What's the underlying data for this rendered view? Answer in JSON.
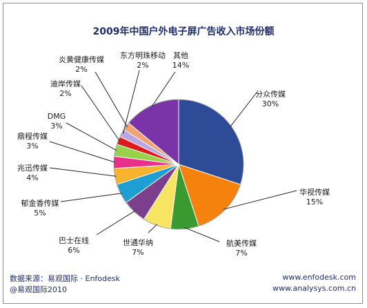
{
  "chart_data": {
    "type": "pie",
    "title": "2009年中国户外电子屏广告收入市场份额",
    "slices": [
      {
        "label": "分众传媒",
        "value": 30,
        "display": "30%",
        "color": "#2e4b97"
      },
      {
        "label": "华视传媒",
        "value": 15,
        "display": "15%",
        "color": "#f5820d"
      },
      {
        "label": "航美传媒",
        "value": 7,
        "display": "7%",
        "color": "#3a9a2f"
      },
      {
        "label": "世通华纳",
        "value": 7,
        "display": "7%",
        "color": "#f7e463"
      },
      {
        "label": "巴士在线",
        "value": 6,
        "display": "6%",
        "color": "#7b3f8e"
      },
      {
        "label": "郁金香传媒",
        "value": 5,
        "display": "5%",
        "color": "#1d9fd3"
      },
      {
        "label": "兆迅传媒",
        "value": 4,
        "display": "4%",
        "color": "#f7b22e"
      },
      {
        "label": "鼎程传媒",
        "value": 3,
        "display": "3%",
        "color": "#e8318a"
      },
      {
        "label": "DMG",
        "value": 3,
        "display": "3%",
        "color": "#9ad14a"
      },
      {
        "label": "迪岸传媒",
        "value": 2,
        "display": "2%",
        "color": "#e01818"
      },
      {
        "label": "东方明珠移动",
        "value": 2,
        "display": "2%",
        "color": "#b8a7e0"
      },
      {
        "label": "炎黄健康传媒",
        "value": 2,
        "display": "2%",
        "color": "#f7a072"
      },
      {
        "label": "其他",
        "value": 14,
        "display": "14%",
        "color": "#7b33a8"
      }
    ]
  },
  "footer": {
    "source": "数据来源：易观国际 · Enfodesk",
    "copyright": "@易观国际2010",
    "website1": "www.enfodesk.com",
    "website2": "www.analysys.com.cn"
  }
}
